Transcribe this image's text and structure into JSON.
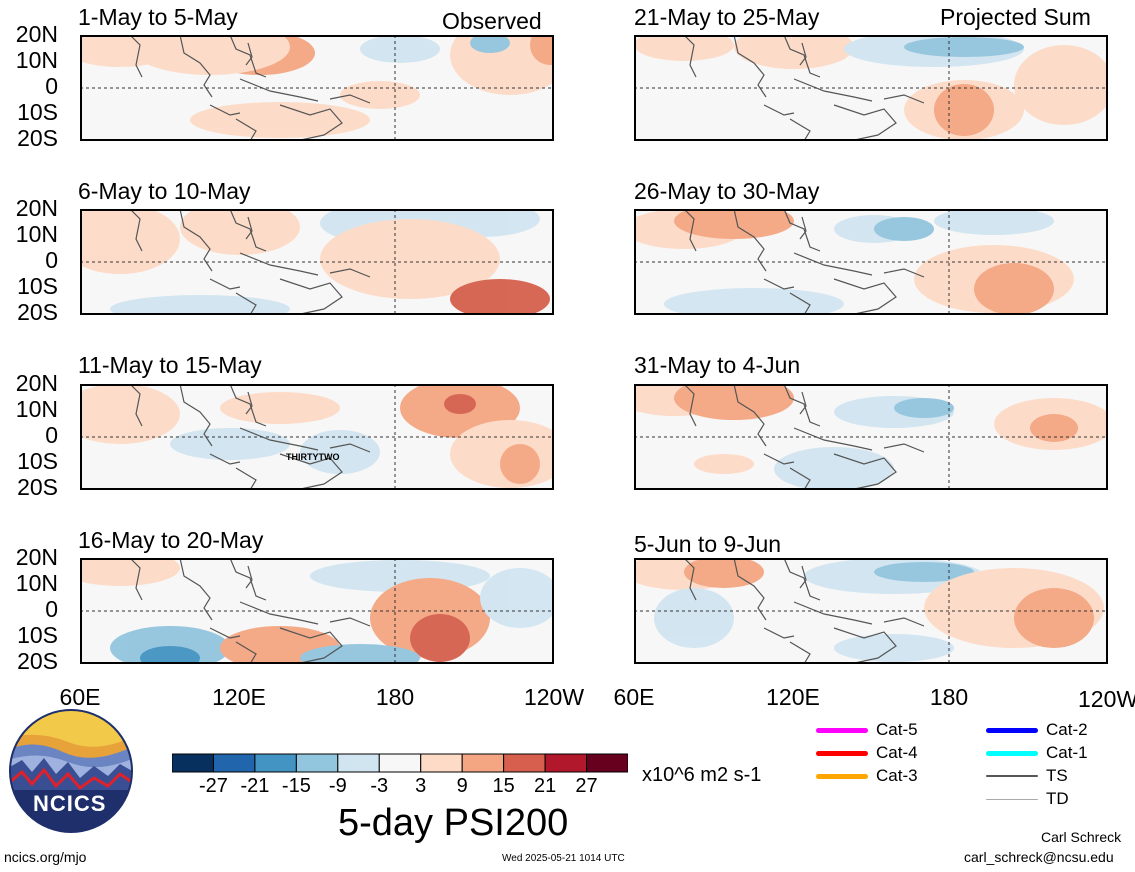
{
  "panels": [
    {
      "title": "1-May to 5-May",
      "corner": "Observed"
    },
    {
      "title": "6-May to 10-May",
      "corner": ""
    },
    {
      "title": "11-May to 15-May",
      "corner": "",
      "annotation": "THIRTYTWO"
    },
    {
      "title": "16-May to 20-May",
      "corner": ""
    },
    {
      "title": "21-May to 25-May",
      "corner": "Projected Sum"
    },
    {
      "title": "26-May to 30-May",
      "corner": ""
    },
    {
      "title": "31-May to 4-Jun",
      "corner": ""
    },
    {
      "title": "5-Jun to 9-Jun",
      "corner": ""
    }
  ],
  "lat_labels": [
    "20N",
    "10N",
    "0",
    "10S",
    "20S"
  ],
  "lon_labels": [
    "60E",
    "120E",
    "180",
    "120W"
  ],
  "colorbar": {
    "colors": [
      "#08305f",
      "#2166ac",
      "#4393c3",
      "#92c5de",
      "#d1e5f0",
      "#f7f7f7",
      "#fddbc7",
      "#f4a582",
      "#d6604d",
      "#b2182b",
      "#67001f"
    ],
    "ticks": [
      "-27",
      "-21",
      "-15",
      "-9",
      "-3",
      "3",
      "9",
      "15",
      "21",
      "27"
    ],
    "units": "x10^6 m2 s-1",
    "title": "5-day PSI200"
  },
  "legend": [
    {
      "label": "Cat-5",
      "color": "#ff00ff"
    },
    {
      "label": "Cat-4",
      "color": "#ff0000"
    },
    {
      "label": "Cat-3",
      "color": "#ffa500"
    },
    {
      "label": "Cat-2",
      "color": "#0000ff"
    },
    {
      "label": "Cat-1",
      "color": "#00ffff"
    },
    {
      "label": "TS",
      "color": "#555555"
    },
    {
      "label": "TD",
      "color": "#aaaaaa"
    }
  ],
  "logo": {
    "text": "NCICS"
  },
  "footer": {
    "site": "ncics.org/mjo",
    "timestamp": "Wed 2025-05-21 1014 UTC",
    "author": "Carl Schreck",
    "email": "carl_schreck@ncsu.edu"
  }
}
